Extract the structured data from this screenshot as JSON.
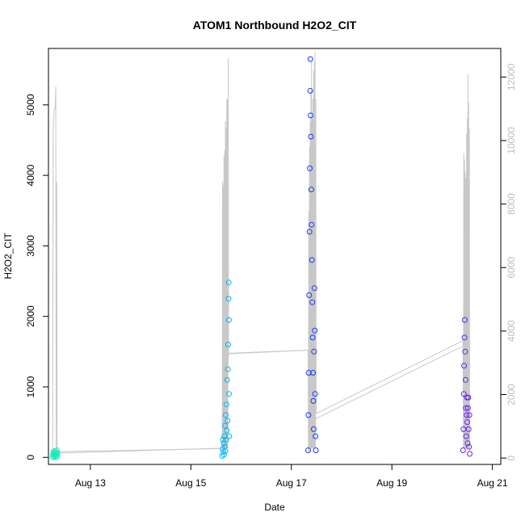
{
  "chart_data": {
    "type": "scatter",
    "title": "ATOM1 Northbound H2O2_CIT",
    "xlabel": "Date",
    "ylabel": "H2O2_CIT",
    "x_range_days": [
      "Aug 12 04:00",
      "Aug 21 04:00"
    ],
    "x_ticks": [
      {
        "date": "Aug 13",
        "label": "Aug 13"
      },
      {
        "date": "Aug 15",
        "label": "Aug 15"
      },
      {
        "date": "Aug 17",
        "label": "Aug 17"
      },
      {
        "date": "Aug 19",
        "label": "Aug 19"
      },
      {
        "date": "Aug 21",
        "label": "Aug 21"
      }
    ],
    "ylim": [
      -100,
      5800
    ],
    "y_ticks": [
      0,
      1000,
      2000,
      3000,
      4000,
      5000
    ],
    "y2lim": [
      -200,
      12900
    ],
    "y2_ticks": [
      0,
      2000,
      4000,
      6000,
      8000,
      10000,
      12000
    ],
    "grid": false,
    "legend": "none",
    "series": [
      {
        "role": "secondary-axis trace",
        "color": "#c8c8c8",
        "points": [
          [
            "Aug 12 06:00",
            200
          ],
          [
            "Aug 12 06:15",
            10300
          ],
          [
            "Aug 12 06:45",
            11000
          ],
          [
            "Aug 12 07:10",
            11000
          ],
          [
            "Aug 12 07:30",
            11700
          ],
          [
            "Aug 12 07:40",
            300
          ],
          [
            "Aug 12 07:55",
            8700
          ],
          [
            "Aug 12 08:10",
            200
          ],
          [
            "Aug 15 15:00",
            300
          ],
          [
            "Aug 15 15:10",
            8700
          ],
          [
            "Aug 15 15:20",
            300
          ],
          [
            "Aug 15 15:30",
            8600
          ],
          [
            "Aug 15 15:40",
            300
          ],
          [
            "Aug 15 15:50",
            9500
          ],
          [
            "Aug 15 16:00",
            300
          ],
          [
            "Aug 15 16:10",
            9700
          ],
          [
            "Aug 15 16:20",
            300
          ],
          [
            "Aug 15 16:30",
            10600
          ],
          [
            "Aug 15 16:40",
            300
          ],
          [
            "Aug 15 16:50",
            10400
          ],
          [
            "Aug 15 17:00",
            300
          ],
          [
            "Aug 15 17:10",
            11300
          ],
          [
            "Aug 15 17:20",
            300
          ],
          [
            "Aug 15 17:30",
            11300
          ],
          [
            "Aug 15 17:40",
            300
          ],
          [
            "Aug 15 17:50",
            12600
          ],
          [
            "Aug 15 18:00",
            3300
          ],
          [
            "Aug 17 08:00",
            3400
          ],
          [
            "Aug 17 08:10",
            200
          ],
          [
            "Aug 17 08:20",
            7800
          ],
          [
            "Aug 17 08:30",
            200
          ],
          [
            "Aug 17 08:40",
            9800
          ],
          [
            "Aug 17 08:50",
            300
          ],
          [
            "Aug 17 09:00",
            10600
          ],
          [
            "Aug 17 09:10",
            300
          ],
          [
            "Aug 17 09:20",
            11600
          ],
          [
            "Aug 17 09:30",
            300
          ],
          [
            "Aug 17 09:40",
            12500
          ],
          [
            "Aug 17 09:50",
            300
          ],
          [
            "Aug 17 10:00",
            10700
          ],
          [
            "Aug 17 10:10",
            300
          ],
          [
            "Aug 17 10:20",
            11300
          ],
          [
            "Aug 17 10:30",
            300
          ],
          [
            "Aug 17 10:40",
            12200
          ],
          [
            "Aug 17 10:50",
            300
          ],
          [
            "Aug 17 11:00",
            12500
          ],
          [
            "Aug 17 11:10",
            300
          ],
          [
            "Aug 17 11:20",
            12800
          ],
          [
            "Aug 17 11:30",
            300
          ],
          [
            "Aug 17 11:40",
            11300
          ],
          [
            "Aug 17 11:50",
            1400
          ],
          [
            "Aug 20 10:00",
            3700
          ],
          [
            "Aug 20 10:10",
            300
          ],
          [
            "Aug 20 10:20",
            9600
          ],
          [
            "Aug 20 10:30",
            300
          ],
          [
            "Aug 20 10:40",
            9400
          ],
          [
            "Aug 20 10:50",
            300
          ],
          [
            "Aug 20 11:00",
            9000
          ],
          [
            "Aug 20 11:10",
            300
          ],
          [
            "Aug 20 11:20",
            8800
          ],
          [
            "Aug 20 11:30",
            300
          ],
          [
            "Aug 20 11:40",
            10200
          ],
          [
            "Aug 20 11:50",
            300
          ],
          [
            "Aug 20 12:00",
            10700
          ],
          [
            "Aug 20 12:10",
            300
          ],
          [
            "Aug 20 12:20",
            12100
          ],
          [
            "Aug 20 12:30",
            300
          ],
          [
            "Aug 20 12:40",
            11200
          ],
          [
            "Aug 20 12:50",
            300
          ],
          [
            "Aug 20 13:00",
            10400
          ],
          [
            "Aug 20 13:10",
            200
          ]
        ]
      },
      {
        "role": "H2O2_CIT",
        "segment": "Aug 12",
        "color": "#1de9b6",
        "markers": [
          [
            "Aug 12 06:00",
            0
          ],
          [
            "Aug 12 06:10",
            40
          ],
          [
            "Aug 12 06:20",
            80
          ],
          [
            "Aug 12 06:30",
            20
          ],
          [
            "Aug 12 06:40",
            60
          ],
          [
            "Aug 12 06:50",
            10
          ],
          [
            "Aug 12 07:00",
            50
          ],
          [
            "Aug 12 07:10",
            90
          ],
          [
            "Aug 12 07:20",
            30
          ],
          [
            "Aug 12 07:30",
            70
          ],
          [
            "Aug 12 07:40",
            0
          ],
          [
            "Aug 12 07:50",
            40
          ],
          [
            "Aug 12 08:00",
            100
          ],
          [
            "Aug 12 08:10",
            20
          ],
          [
            "Aug 12 08:20",
            60
          ]
        ]
      },
      {
        "role": "H2O2_CIT",
        "segment": "Aug 15",
        "color": "#00b7f5",
        "markers": [
          [
            "Aug 15 15:00",
            20
          ],
          [
            "Aug 15 15:10",
            120
          ],
          [
            "Aug 15 15:20",
            250
          ],
          [
            "Aug 15 15:30",
            80
          ],
          [
            "Aug 15 15:40",
            200
          ],
          [
            "Aug 15 15:50",
            40
          ],
          [
            "Aug 15 16:00",
            300
          ],
          [
            "Aug 15 16:10",
            150
          ],
          [
            "Aug 15 16:20",
            450
          ],
          [
            "Aug 15 16:30",
            90
          ],
          [
            "Aug 15 16:40",
            600
          ],
          [
            "Aug 15 16:50",
            250
          ],
          [
            "Aug 15 17:00",
            750
          ],
          [
            "Aug 15 17:10",
            380
          ],
          [
            "Aug 15 17:20",
            1100
          ],
          [
            "Aug 15 17:30",
            520
          ],
          [
            "Aug 15 17:40",
            1250
          ],
          [
            "Aug 15 17:50",
            1600
          ],
          [
            "Aug 15 18:00",
            2250
          ],
          [
            "Aug 15 18:05",
            2480
          ],
          [
            "Aug 15 18:10",
            1950
          ],
          [
            "Aug 15 18:15",
            900
          ],
          [
            "Aug 15 18:20",
            300
          ]
        ]
      },
      {
        "role": "H2O2_CIT",
        "segment": "Aug 17",
        "color": "#1a3cf5",
        "markers": [
          [
            "Aug 17 08:00",
            100
          ],
          [
            "Aug 17 08:10",
            600
          ],
          [
            "Aug 17 08:20",
            1200
          ],
          [
            "Aug 17 08:30",
            2300
          ],
          [
            "Aug 17 08:40",
            3200
          ],
          [
            "Aug 17 08:50",
            4100
          ],
          [
            "Aug 17 09:00",
            5200
          ],
          [
            "Aug 17 09:05",
            5650
          ],
          [
            "Aug 17 09:10",
            4850
          ],
          [
            "Aug 17 09:20",
            4550
          ],
          [
            "Aug 17 09:30",
            3800
          ],
          [
            "Aug 17 09:40",
            3300
          ],
          [
            "Aug 17 09:50",
            2800
          ],
          [
            "Aug 17 10:00",
            2200
          ],
          [
            "Aug 17 10:10",
            1700
          ],
          [
            "Aug 17 10:20",
            1200
          ],
          [
            "Aug 17 10:30",
            800
          ],
          [
            "Aug 17 10:40",
            400
          ],
          [
            "Aug 17 10:50",
            1500
          ],
          [
            "Aug 17 11:00",
            2400
          ],
          [
            "Aug 17 11:10",
            1800
          ],
          [
            "Aug 17 11:20",
            900
          ],
          [
            "Aug 17 11:30",
            300
          ],
          [
            "Aug 17 11:40",
            100
          ]
        ]
      },
      {
        "role": "H2O2_CIT",
        "segment": "Aug 20",
        "color": "#6a1ff5",
        "markers": [
          [
            "Aug 20 10:00",
            100
          ],
          [
            "Aug 20 10:10",
            400
          ],
          [
            "Aug 20 10:20",
            900
          ],
          [
            "Aug 20 10:30",
            1300
          ],
          [
            "Aug 20 10:40",
            1700
          ],
          [
            "Aug 20 10:50",
            1950
          ],
          [
            "Aug 20 11:00",
            1500
          ],
          [
            "Aug 20 11:10",
            1100
          ],
          [
            "Aug 20 11:20",
            700
          ],
          [
            "Aug 20 11:30",
            300
          ],
          [
            "Aug 20 11:40",
            600
          ],
          [
            "Aug 20 11:50",
            850
          ],
          [
            "Aug 20 12:00",
            500
          ],
          [
            "Aug 20 12:10",
            200
          ],
          [
            "Aug 20 12:20",
            700
          ],
          [
            "Aug 20 12:30",
            850
          ],
          [
            "Aug 20 12:40",
            400
          ],
          [
            "Aug 20 12:50",
            150
          ],
          [
            "Aug 20 13:00",
            600
          ],
          [
            "Aug 20 13:10",
            50
          ]
        ]
      }
    ],
    "connector_points": [
      [
        "Aug 12 08:20",
        60
      ],
      [
        "Aug 15 15:00",
        130
      ],
      [
        "Aug 15 18:00",
        1470
      ],
      [
        "Aug 17 08:00",
        1520
      ],
      [
        "Aug 17 11:40",
        550
      ],
      [
        "Aug 20 10:00",
        1580
      ]
    ]
  }
}
